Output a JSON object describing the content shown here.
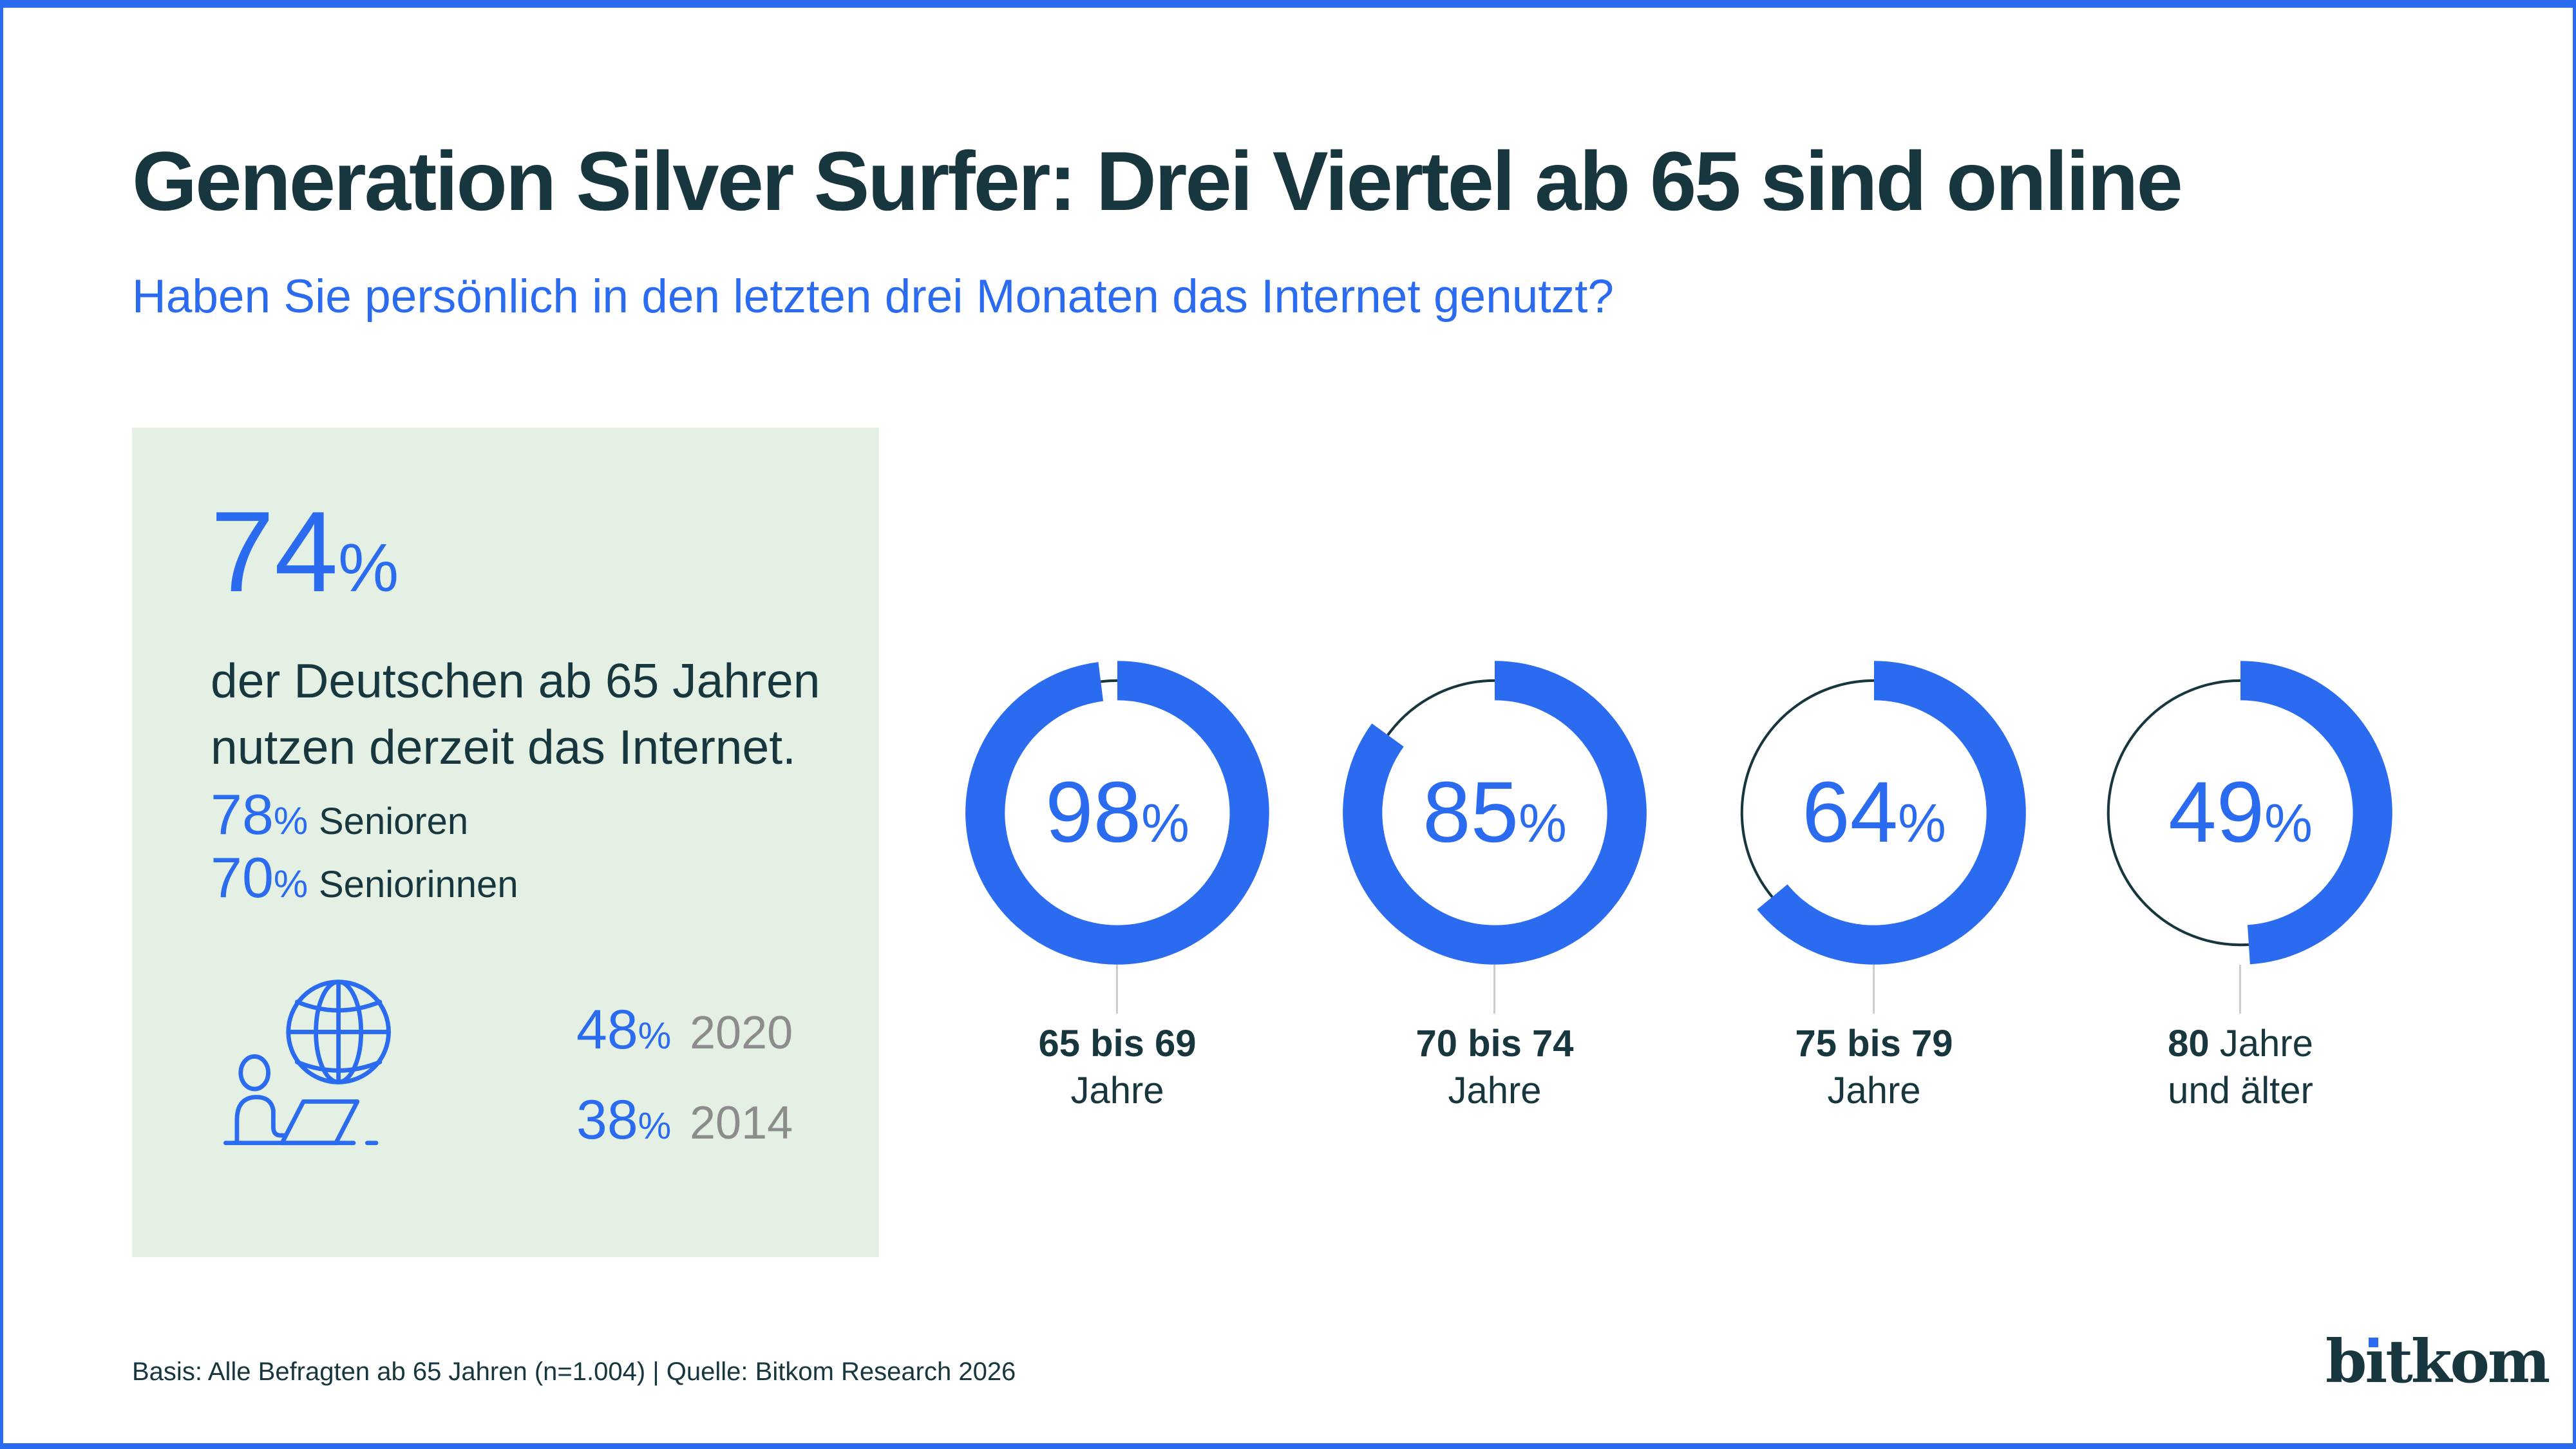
{
  "page": {
    "footer": "Basis: Alle Befragten ab 65 Jahren (n=1.004) | Quelle: Bitkom Research 2026",
    "logo": {
      "pre": "b",
      "i": "ı",
      "post": "tkom"
    }
  },
  "highlight_box": {
    "headline_number": "74",
    "percent_sign": "%",
    "description": "der Deutschen ab 65 Jahren\nnutzen derzeit das Internet.",
    "gender_stats": [
      {
        "number": "78",
        "percent": "%",
        "label": "Senioren"
      },
      {
        "number": "70",
        "percent": "%",
        "label": "Seniorinnen"
      }
    ],
    "history_stats": [
      {
        "number": "48",
        "percent": "%",
        "year": "2020"
      },
      {
        "number": "38",
        "percent": "%",
        "year": "2014"
      }
    ]
  },
  "chart_data": {
    "type": "donut",
    "title": "Generation Silver Surfer: Drei Viertel ab 65 sind online",
    "question": "Haben Sie persönlich in den letzten drei Monaten das Internet genutzt?",
    "unit": "%",
    "value_range": [
      0,
      100
    ],
    "legend_position": "below-each-donut",
    "series": [
      {
        "value": 98,
        "line1_bold": "65 bis 69",
        "line1_rest": "",
        "line2": "Jahre"
      },
      {
        "value": 85,
        "line1_bold": "70 bis 74",
        "line1_rest": "",
        "line2": "Jahre"
      },
      {
        "value": 64,
        "line1_bold": "75 bis 79",
        "line1_rest": "",
        "line2": "Jahre"
      },
      {
        "value": 49,
        "line1_bold": "80",
        "line1_rest": " Jahre",
        "line2": "und älter"
      }
    ]
  },
  "colors": {
    "accent": "#2B6BF0",
    "dark": "#17363D",
    "box_bg": "#E4F0E4",
    "muted": "#8C8C8C",
    "connector": "#CCCCCC"
  }
}
